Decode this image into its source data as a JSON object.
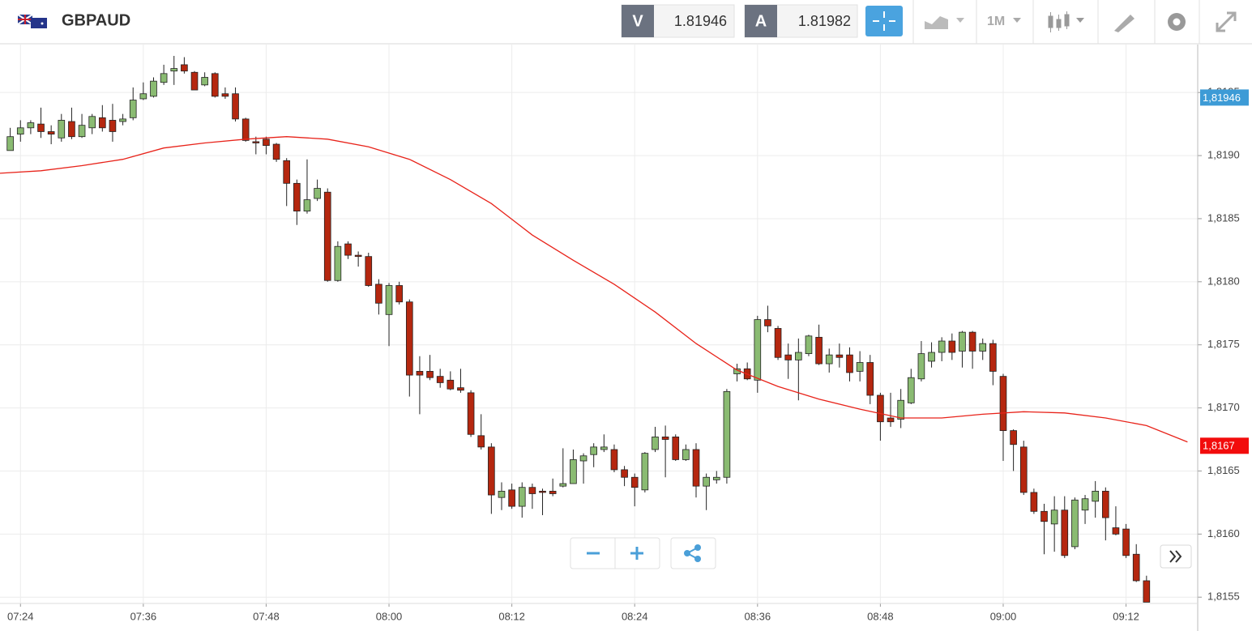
{
  "header": {
    "symbol": "GBPAUD",
    "bid_label": "V",
    "bid": 1.81946,
    "ask_label": "A",
    "ask": 1.81982,
    "timeframe": "1M"
  },
  "chart_data": {
    "type": "candlestick",
    "up_color": "#8abb72",
    "down_color": "#b5270f",
    "x": [
      "07:23",
      "07:24",
      "07:25",
      "07:26",
      "07:27",
      "07:28",
      "07:29",
      "07:30",
      "07:31",
      "07:32",
      "07:33",
      "07:34",
      "07:35",
      "07:36",
      "07:37",
      "07:38",
      "07:39",
      "07:40",
      "07:41",
      "07:42",
      "07:43",
      "07:44",
      "07:45",
      "07:46",
      "07:47",
      "07:48",
      "07:49",
      "07:50",
      "07:51",
      "07:52",
      "07:53",
      "07:54",
      "07:55",
      "07:56",
      "07:57",
      "07:58",
      "07:59",
      "08:00",
      "08:01",
      "08:02",
      "08:03",
      "08:04",
      "08:05",
      "08:06",
      "08:07",
      "08:08",
      "08:09",
      "08:10",
      "08:11",
      "08:12",
      "08:13",
      "08:14",
      "08:15",
      "08:16",
      "08:17",
      "08:18",
      "08:19",
      "08:20",
      "08:21",
      "08:22",
      "08:23",
      "08:24",
      "08:25",
      "08:26",
      "08:27",
      "08:28",
      "08:29",
      "08:30",
      "08:31",
      "08:32",
      "08:33",
      "08:34",
      "08:35",
      "08:36",
      "08:37",
      "08:38",
      "08:39",
      "08:40",
      "08:41",
      "08:42",
      "08:43",
      "08:44",
      "08:45",
      "08:46",
      "08:47",
      "08:48",
      "08:49",
      "08:50",
      "08:51",
      "08:52",
      "08:53",
      "08:54",
      "08:55",
      "08:56",
      "08:57",
      "08:58",
      "08:59",
      "09:00",
      "09:01",
      "09:02",
      "09:03",
      "09:04",
      "09:05",
      "09:06",
      "09:07",
      "09:08",
      "09:09",
      "09:10",
      "09:11",
      "09:12",
      "09:13",
      "09:14"
    ],
    "open": [
      1.81904,
      1.81917,
      1.81922,
      1.81925,
      1.81919,
      1.81914,
      1.81927,
      1.81915,
      1.81922,
      1.8193,
      1.81928,
      1.81927,
      1.8193,
      1.81945,
      1.81947,
      1.81958,
      1.81967,
      1.81972,
      1.81966,
      1.81956,
      1.81965,
      1.81949,
      1.81949,
      1.81929,
      1.81911,
      1.81913,
      1.81909,
      1.81896,
      1.81878,
      1.81856,
      1.81866,
      1.81871,
      1.81801,
      1.8183,
      1.81821,
      1.8182,
      1.81798,
      1.81774,
      1.81797,
      1.81784,
      1.81729,
      1.81729,
      1.81725,
      1.81722,
      1.81716,
      1.81712,
      1.81678,
      1.81669,
      1.81629,
      1.81635,
      1.81622,
      1.81637,
      1.81634,
      1.81634,
      1.81638,
      1.8164,
      1.81658,
      1.81663,
      1.81667,
      1.81667,
      1.81651,
      1.81645,
      1.81635,
      1.81667,
      1.81677,
      1.81677,
      1.81659,
      1.81667,
      1.81638,
      1.81643,
      1.81645,
      1.81727,
      1.81731,
      1.81722,
      1.8177,
      1.81763,
      1.81742,
      1.81738,
      1.81743,
      1.81756,
      1.81735,
      1.81742,
      1.81742,
      1.81729,
      1.81736,
      1.8171,
      1.81692,
      1.81691,
      1.81704,
      1.81723,
      1.81737,
      1.81744,
      1.81753,
      1.81745,
      1.8176,
      1.81745,
      1.81751,
      1.81725,
      1.81682,
      1.81669,
      1.81633,
      1.81618,
      1.81608,
      1.81619,
      1.8159,
      1.81619,
      1.81626,
      1.81634,
      1.81605,
      1.81604,
      1.81584,
      1.81563
    ],
    "high": [
      1.81922,
      1.81928,
      1.81928,
      1.81938,
      1.81924,
      1.81933,
      1.81938,
      1.81933,
      1.81933,
      1.8194,
      1.81941,
      1.81933,
      1.81954,
      1.81958,
      1.81962,
      1.81972,
      1.81979,
      1.81978,
      1.81967,
      1.81966,
      1.81966,
      1.81954,
      1.81954,
      1.8193,
      1.81915,
      1.81915,
      1.8191,
      1.81898,
      1.81881,
      1.81897,
      1.81881,
      1.81874,
      1.81832,
      1.81832,
      1.81824,
      1.81823,
      1.81802,
      1.81799,
      1.818,
      1.81786,
      1.81741,
      1.81742,
      1.81731,
      1.81729,
      1.81731,
      1.81714,
      1.81695,
      1.81672,
      1.81641,
      1.8164,
      1.81641,
      1.8164,
      1.81636,
      1.81644,
      1.81668,
      1.81667,
      1.81664,
      1.81672,
      1.81679,
      1.81671,
      1.81654,
      1.81648,
      1.81665,
      1.81685,
      1.81686,
      1.81679,
      1.81671,
      1.81672,
      1.81648,
      1.8165,
      1.81715,
      1.81735,
      1.81736,
      1.81773,
      1.81781,
      1.81765,
      1.81751,
      1.81755,
      1.81758,
      1.81766,
      1.81747,
      1.81751,
      1.81748,
      1.81745,
      1.81742,
      1.81712,
      1.81712,
      1.81715,
      1.81731,
      1.81753,
      1.81752,
      1.81756,
      1.81759,
      1.81761,
      1.81761,
      1.81755,
      1.81754,
      1.81727,
      1.81683,
      1.81674,
      1.81636,
      1.81624,
      1.8163,
      1.8163,
      1.81629,
      1.81631,
      1.81642,
      1.81637,
      1.81622,
      1.81608,
      1.81592,
      1.81567
    ],
    "low": [
      1.81904,
      1.81911,
      1.81917,
      1.81914,
      1.81909,
      1.81911,
      1.81913,
      1.81914,
      1.81917,
      1.81919,
      1.81911,
      1.81924,
      1.81928,
      1.81944,
      1.81946,
      1.81956,
      1.81956,
      1.81965,
      1.81952,
      1.81955,
      1.81946,
      1.81945,
      1.81927,
      1.81911,
      1.81901,
      1.81901,
      1.81895,
      1.8186,
      1.81845,
      1.81854,
      1.81864,
      1.818,
      1.818,
      1.81818,
      1.81812,
      1.81796,
      1.81774,
      1.81749,
      1.81782,
      1.81709,
      1.81695,
      1.81722,
      1.81716,
      1.81714,
      1.81712,
      1.81677,
      1.81667,
      1.81616,
      1.81619,
      1.8162,
      1.81613,
      1.8162,
      1.81615,
      1.8163,
      1.81637,
      1.8164,
      1.8164,
      1.81653,
      1.81665,
      1.81649,
      1.81638,
      1.81622,
      1.81633,
      1.81665,
      1.81645,
      1.81658,
      1.81658,
      1.81629,
      1.81619,
      1.8164,
      1.8164,
      1.81721,
      1.81722,
      1.81712,
      1.8176,
      1.81738,
      1.81723,
      1.81706,
      1.81741,
      1.81734,
      1.81728,
      1.81732,
      1.81721,
      1.81721,
      1.81703,
      1.81674,
      1.81685,
      1.81684,
      1.81703,
      1.81721,
      1.81732,
      1.81737,
      1.81738,
      1.81732,
      1.81731,
      1.81738,
      1.81718,
      1.81658,
      1.8165,
      1.81631,
      1.81616,
      1.81584,
      1.81586,
      1.81581,
      1.81588,
      1.81608,
      1.81613,
      1.81595,
      1.81599,
      1.81581,
      1.81562,
      1.81546
    ],
    "close": [
      1.81915,
      1.81922,
      1.81926,
      1.81919,
      1.81917,
      1.81928,
      1.81915,
      1.81924,
      1.81931,
      1.81922,
      1.81919,
      1.81929,
      1.81944,
      1.81949,
      1.81959,
      1.81965,
      1.81969,
      1.81967,
      1.81952,
      1.81962,
      1.81947,
      1.81947,
      1.81929,
      1.81912,
      1.8191,
      1.81908,
      1.81897,
      1.81878,
      1.81856,
      1.81865,
      1.81874,
      1.81801,
      1.81828,
      1.81821,
      1.8182,
      1.81797,
      1.81783,
      1.81797,
      1.81784,
      1.81726,
      1.81726,
      1.81724,
      1.8172,
      1.81715,
      1.81714,
      1.81679,
      1.81669,
      1.81631,
      1.81634,
      1.81622,
      1.81637,
      1.81632,
      1.81633,
      1.81632,
      1.8164,
      1.81659,
      1.81662,
      1.81669,
      1.81669,
      1.81651,
      1.81645,
      1.81637,
      1.81664,
      1.81677,
      1.81675,
      1.81659,
      1.81667,
      1.81638,
      1.81645,
      1.81645,
      1.81713,
      1.81731,
      1.81723,
      1.8177,
      1.81765,
      1.8174,
      1.81738,
      1.81744,
      1.81757,
      1.81735,
      1.81742,
      1.8174,
      1.81728,
      1.81736,
      1.8171,
      1.81689,
      1.81689,
      1.81706,
      1.81724,
      1.81743,
      1.81744,
      1.81753,
      1.81744,
      1.8176,
      1.81745,
      1.81751,
      1.81729,
      1.81682,
      1.81671,
      1.81633,
      1.81618,
      1.8161,
      1.81619,
      1.81583,
      1.81627,
      1.81628,
      1.81634,
      1.81613,
      1.816,
      1.81583,
      1.81563,
      1.81546
    ],
    "overlay": {
      "color": "#e8231a",
      "x": [
        "07:22",
        "07:26",
        "07:30",
        "07:34",
        "07:38",
        "07:42",
        "07:46",
        "07:50",
        "07:54",
        "07:58",
        "08:02",
        "08:06",
        "08:10",
        "08:14",
        "08:18",
        "08:22",
        "08:26",
        "08:30",
        "08:34",
        "08:38",
        "08:42",
        "08:46",
        "08:50",
        "08:54",
        "08:58",
        "09:02",
        "09:06",
        "09:10",
        "09:14",
        "09:18"
      ],
      "values": [
        1.81886,
        1.81888,
        1.81892,
        1.81897,
        1.81906,
        1.8191,
        1.81913,
        1.81915,
        1.81913,
        1.81907,
        1.81897,
        1.81881,
        1.81862,
        1.81837,
        1.81817,
        1.81798,
        1.81776,
        1.81751,
        1.8173,
        1.81717,
        1.81707,
        1.81699,
        1.81692,
        1.81692,
        1.81695,
        1.81697,
        1.81696,
        1.81692,
        1.81686,
        1.81673
      ]
    },
    "overlay_tag": {
      "value": 1.8167,
      "label": "1,8167",
      "color": "#f20c0c"
    },
    "price_tag": {
      "value": 1.81946,
      "label": "1,81946",
      "color": "#3d9bd6"
    },
    "xlim": [
      "07:22",
      "09:19"
    ],
    "ylim": [
      1.81545,
      1.81988
    ],
    "xticks": [
      "07:24",
      "07:36",
      "07:48",
      "08:00",
      "08:12",
      "08:24",
      "08:36",
      "08:48",
      "09:00",
      "09:12"
    ],
    "yticks": [
      {
        "value": 1.8155,
        "label": "1,8155"
      },
      {
        "value": 1.816,
        "label": "1,8160"
      },
      {
        "value": 1.8165,
        "label": "1,8165"
      },
      {
        "value": 1.817,
        "label": "1,8170"
      },
      {
        "value": 1.8175,
        "label": "1,8175"
      },
      {
        "value": 1.818,
        "label": "1,8180"
      },
      {
        "value": 1.8185,
        "label": "1,8185"
      },
      {
        "value": 1.819,
        "label": "1,8190"
      },
      {
        "value": 1.8195,
        "label": "1,8195"
      }
    ],
    "grid": true
  }
}
